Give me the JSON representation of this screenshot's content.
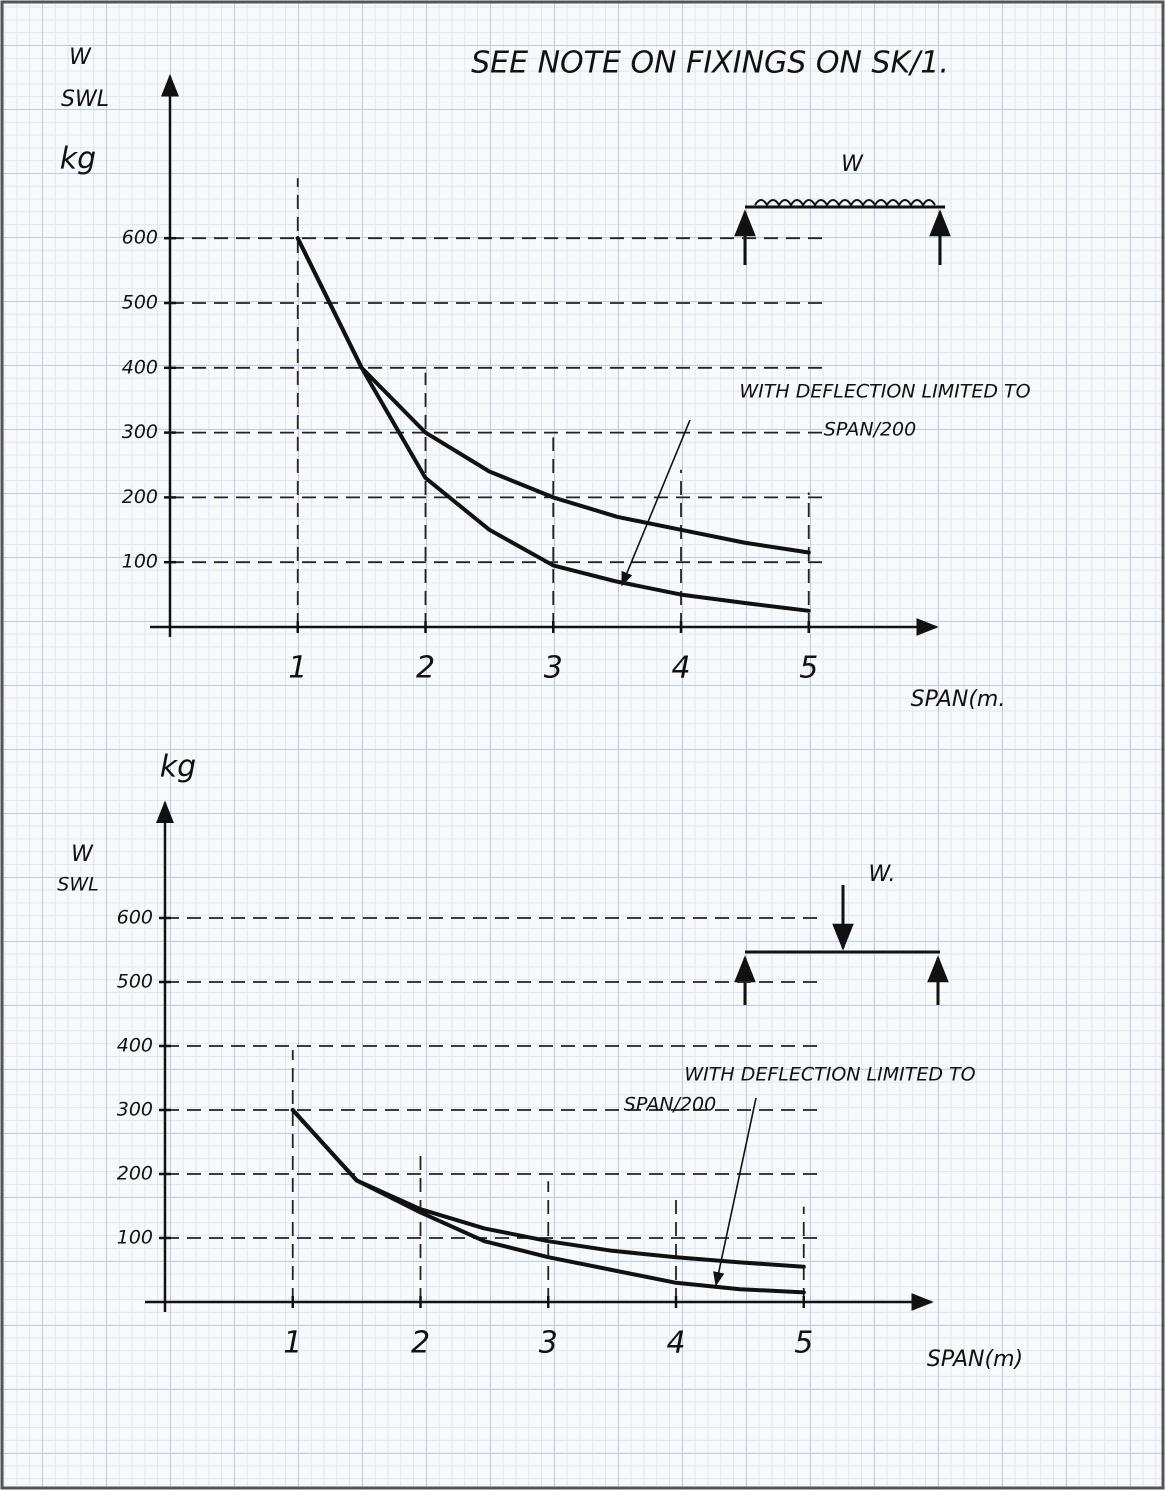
{
  "chart_data": [
    {
      "type": "line",
      "title": "SEE NOTE ON FIXINGS ON SK/1.",
      "y_label": [
        "W",
        "SWL",
        "kg"
      ],
      "x_label": "SPAN(m.",
      "load_label": "W",
      "annotation": [
        "WITH DEFLECTION LIMITED TO",
        "SPAN/200"
      ],
      "x": [
        1,
        1.5,
        2,
        2.5,
        3,
        3.5,
        4,
        4.5,
        5
      ],
      "series": [
        {
          "color": "#111111",
          "values": [
            600,
            400,
            300,
            240,
            200,
            170,
            150,
            130,
            115
          ]
        },
        {
          "color": "#111111",
          "values": [
            600,
            400,
            230,
            150,
            95,
            70,
            50,
            37,
            25
          ]
        }
      ],
      "xlim": [
        0,
        6
      ],
      "xticks": [
        1,
        2,
        3,
        4,
        5
      ],
      "ylim": [
        0,
        850
      ],
      "yticks": [
        100,
        200,
        300,
        400,
        500,
        600
      ],
      "grid": true
    },
    {
      "type": "line",
      "y_label": [
        "kg",
        "W",
        "SWL"
      ],
      "x_label": "SPAN(m)",
      "load_label": "W.",
      "annotation": [
        "WITH DEFLECTION LIMITED TO",
        "SPAN/200"
      ],
      "x": [
        1,
        1.5,
        2,
        2.5,
        3,
        3.5,
        4,
        4.5,
        5
      ],
      "series": [
        {
          "color": "#111111",
          "values": [
            300,
            190,
            145,
            115,
            95,
            80,
            70,
            62,
            55
          ]
        },
        {
          "color": "#111111",
          "values": [
            300,
            190,
            140,
            95,
            70,
            50,
            30,
            20,
            15
          ]
        }
      ],
      "xlim": [
        0,
        6
      ],
      "xticks": [
        1,
        2,
        3,
        4,
        5
      ],
      "ylim": [
        0,
        780
      ],
      "yticks": [
        100,
        200,
        300,
        400,
        500,
        600
      ],
      "grid": true
    }
  ]
}
